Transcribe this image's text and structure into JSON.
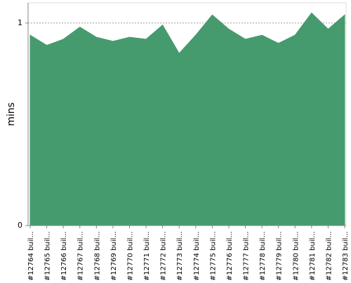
{
  "chart_data": {
    "type": "area",
    "y_label": "mins",
    "categories": [
      "#12764 buil...",
      "#12765 buil...",
      "#12766 buil...",
      "#12767 buil...",
      "#12768 buil...",
      "#12769 buil...",
      "#12770 buil...",
      "#12771 buil...",
      "#12772 buil...",
      "#12773 buil...",
      "#12774 buil...",
      "#12775 buil...",
      "#12776 buil...",
      "#12777 buil...",
      "#12778 buil...",
      "#12779 buil...",
      "#12780 buil...",
      "#12781 buil...",
      "#12782 buil...",
      "#12783 buil..."
    ],
    "values": [
      0.94,
      0.89,
      0.92,
      0.98,
      0.93,
      0.91,
      0.93,
      0.92,
      0.99,
      0.85,
      0.94,
      1.04,
      0.97,
      0.92,
      0.94,
      0.9,
      0.94,
      1.05,
      0.97,
      1.04
    ],
    "color": "#459b6e",
    "ylim": [
      0,
      1.1
    ],
    "yticks": [
      0,
      1
    ],
    "grid": true
  }
}
